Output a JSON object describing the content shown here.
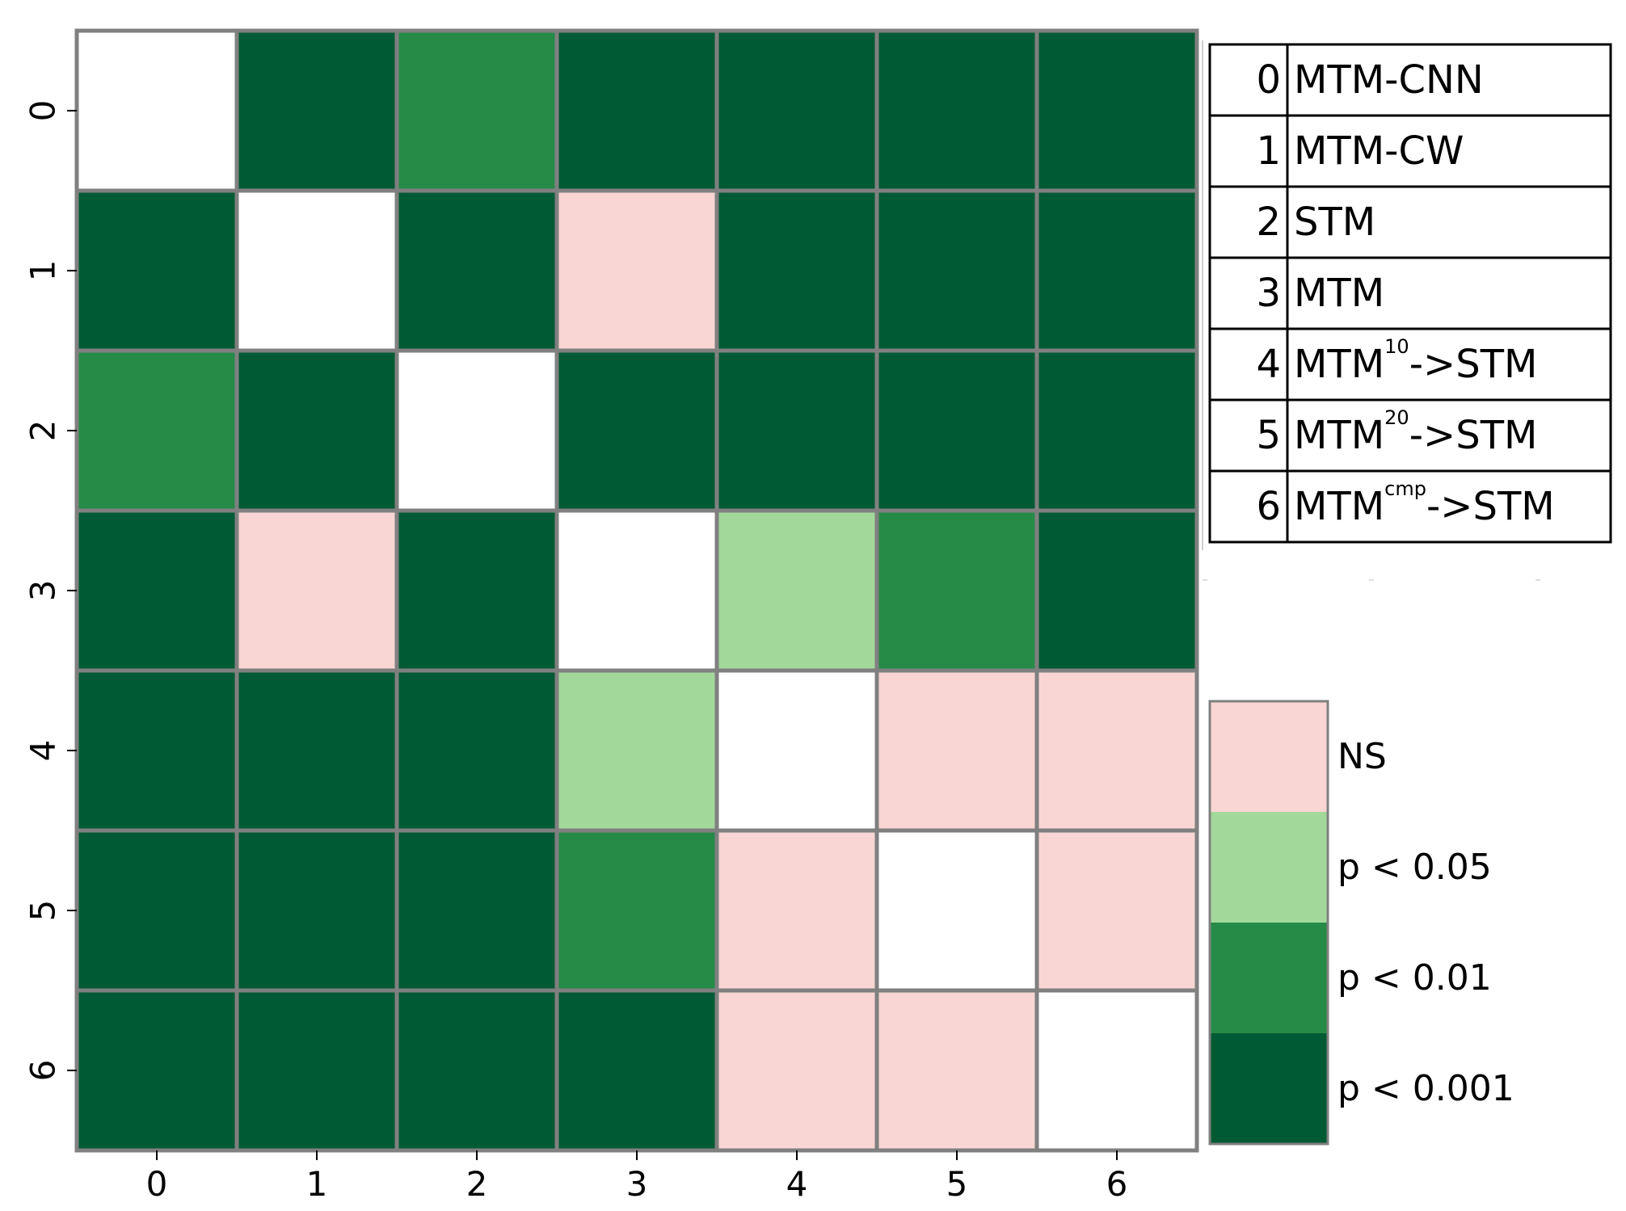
{
  "chart_data": {
    "type": "heatmap",
    "title": "",
    "xlabel": "",
    "ylabel": "",
    "x_ticks": [
      "0",
      "1",
      "2",
      "3",
      "4",
      "5",
      "6"
    ],
    "y_ticks": [
      "0",
      "1",
      "2",
      "3",
      "4",
      "5",
      "6"
    ],
    "significance_levels": [
      "diagonal",
      "NS",
      "p < 0.05",
      "p < 0.01",
      "p < 0.001"
    ],
    "matrix": [
      [
        "diagonal",
        "p < 0.001",
        "p < 0.01",
        "p < 0.001",
        "p < 0.001",
        "p < 0.001",
        "p < 0.001"
      ],
      [
        "p < 0.001",
        "diagonal",
        "p < 0.001",
        "NS",
        "p < 0.001",
        "p < 0.001",
        "p < 0.001"
      ],
      [
        "p < 0.01",
        "p < 0.001",
        "diagonal",
        "p < 0.001",
        "p < 0.001",
        "p < 0.001",
        "p < 0.001"
      ],
      [
        "p < 0.001",
        "NS",
        "p < 0.001",
        "diagonal",
        "p < 0.05",
        "p < 0.01",
        "p < 0.001"
      ],
      [
        "p < 0.001",
        "p < 0.001",
        "p < 0.001",
        "p < 0.05",
        "diagonal",
        "NS",
        "NS"
      ],
      [
        "p < 0.001",
        "p < 0.001",
        "p < 0.001",
        "p < 0.01",
        "NS",
        "diagonal",
        "NS"
      ],
      [
        "p < 0.001",
        "p < 0.001",
        "p < 0.001",
        "p < 0.001",
        "NS",
        "NS",
        "diagonal"
      ]
    ],
    "level_colors": {
      "diagonal": "#ffffff",
      "NS": "#f9d6d3",
      "p < 0.05": "#a3d89b",
      "p < 0.01": "#268b47",
      "p < 0.001": "#005a33"
    },
    "grid_color": "#808080",
    "colorbar": {
      "levels": [
        "NS",
        "p < 0.05",
        "p < 0.01",
        "p < 0.001"
      ]
    },
    "model_legend": [
      {
        "index": "0",
        "base": "MTM-CNN",
        "sup": "",
        "suffix": ""
      },
      {
        "index": "1",
        "base": "MTM-CW",
        "sup": "",
        "suffix": ""
      },
      {
        "index": "2",
        "base": "STM",
        "sup": "",
        "suffix": ""
      },
      {
        "index": "3",
        "base": "MTM",
        "sup": "",
        "suffix": ""
      },
      {
        "index": "4",
        "base": "MTM",
        "sup": "10",
        "suffix": "->STM"
      },
      {
        "index": "5",
        "base": "MTM",
        "sup": "20",
        "suffix": "->STM"
      },
      {
        "index": "6",
        "base": "MTM",
        "sup": "cmp",
        "suffix": "->STM"
      }
    ]
  }
}
